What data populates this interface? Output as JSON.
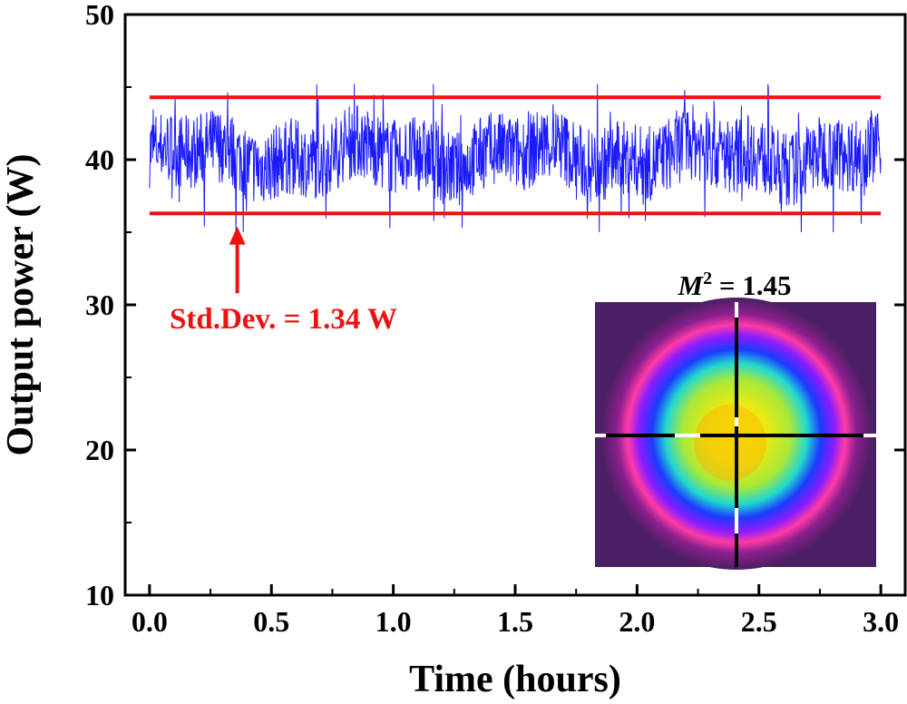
{
  "colors": {
    "trace": "#1a1aff",
    "limits": "#ee1111",
    "annotation": "#ee1111",
    "axis": "#000000"
  },
  "chart_data": {
    "type": "line",
    "title": "",
    "xlabel": "Time (hours)",
    "ylabel": "Output power (W)",
    "xlim": [
      -0.1,
      3.1
    ],
    "ylim": [
      10,
      50
    ],
    "xticks": [
      0.0,
      0.5,
      1.0,
      1.5,
      2.0,
      2.5,
      3.0
    ],
    "xtick_labels": [
      "0.0",
      "0.5",
      "1.0",
      "1.5",
      "2.0",
      "2.5",
      "3.0"
    ],
    "yticks": [
      10,
      20,
      30,
      40,
      50
    ],
    "ytick_labels": [
      "10",
      "20",
      "30",
      "40",
      "50"
    ],
    "grid": false,
    "series": [
      {
        "name": "Output power",
        "description": "noisy power trace fluctuating around mean",
        "x_range": [
          0.0,
          3.0
        ],
        "mean": 40.3,
        "std_dev": 1.34,
        "min": 35.0,
        "max": 45.2
      }
    ],
    "reference_lines": [
      {
        "name": "upper-limit",
        "y": 44.3,
        "x_range": [
          0.0,
          3.0
        ]
      },
      {
        "name": "lower-limit",
        "y": 36.3,
        "x_range": [
          0.0,
          3.0
        ]
      }
    ],
    "annotations": [
      {
        "name": "std-dev",
        "text": "Std.Dev. = 1.34 W",
        "arrow_x": 0.36,
        "arrow_y_from": 30.8,
        "arrow_y_to": 35.4
      }
    ],
    "inset": {
      "label_prefix": "M",
      "label_superscript": "2",
      "label_value": " = 1.45",
      "description": "beam profile image with crosshair"
    }
  }
}
